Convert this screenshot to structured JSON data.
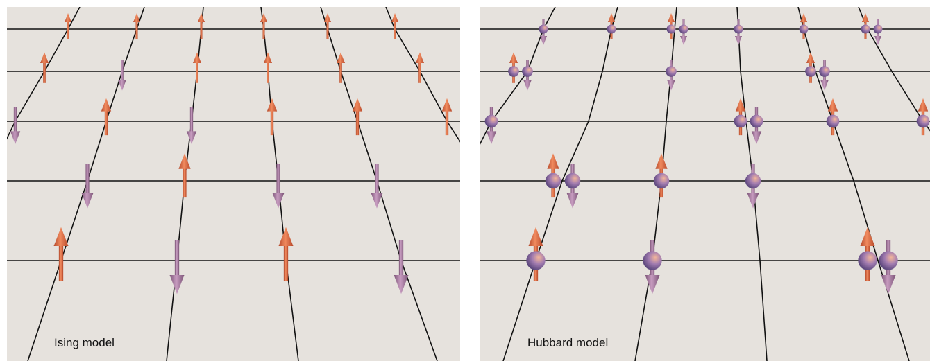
{
  "panels": [
    {
      "label": "Ising model"
    },
    {
      "label": "Hubbard model"
    }
  ]
}
